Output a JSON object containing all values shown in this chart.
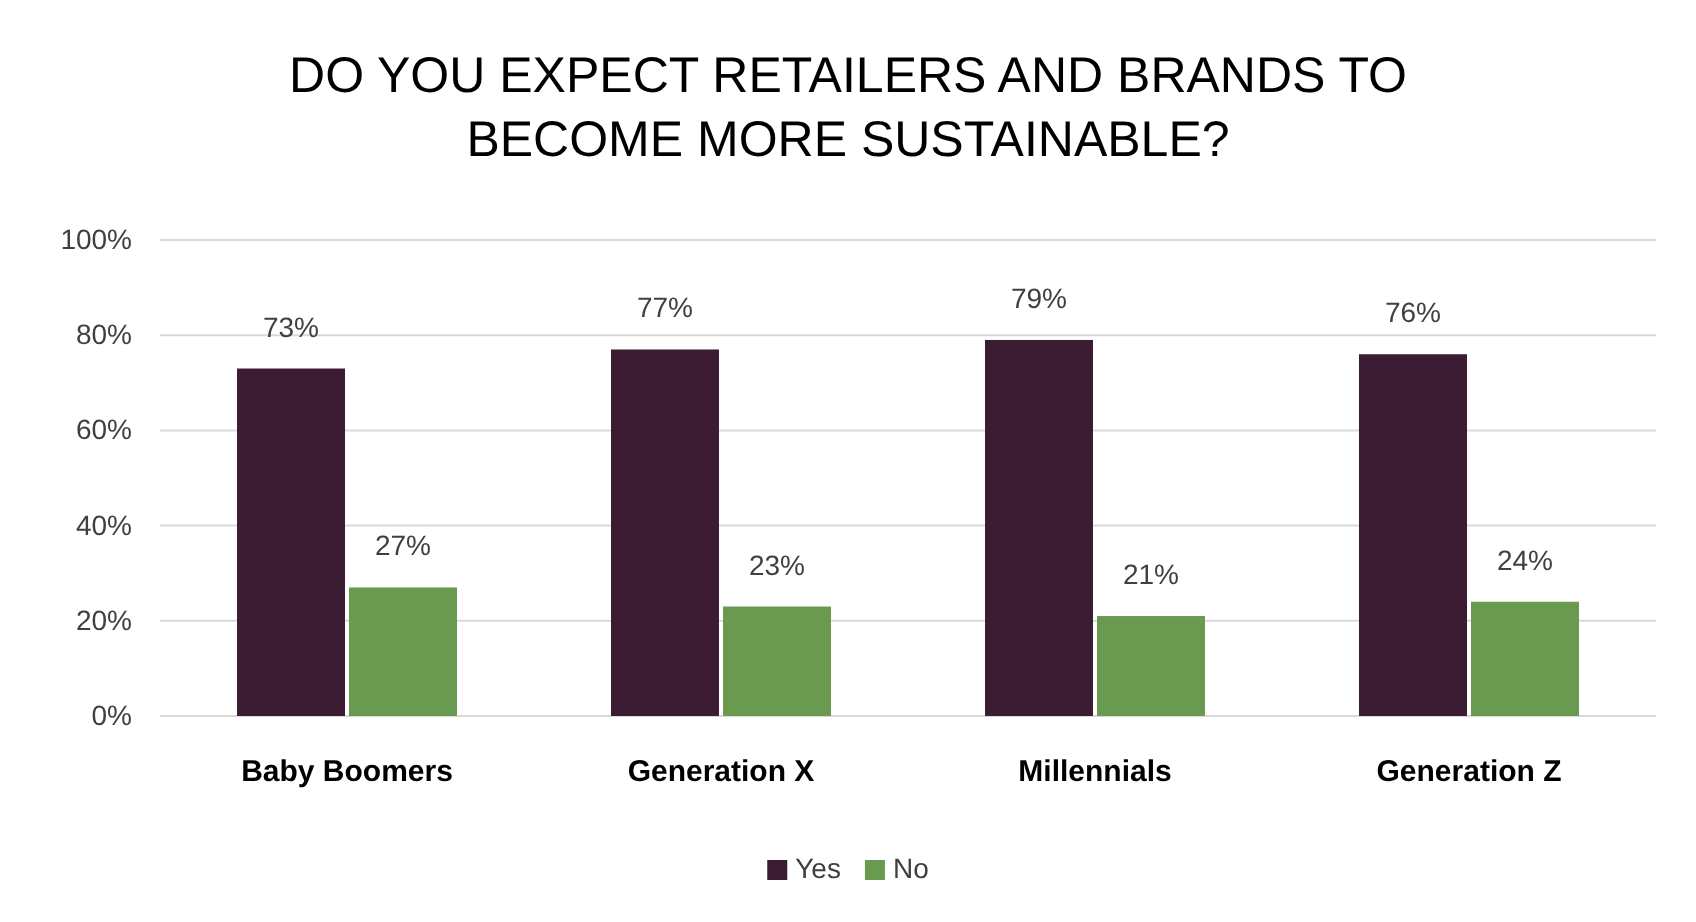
{
  "chart_data": {
    "type": "bar",
    "title": "DO YOU EXPECT RETAILERS AND BRANDS TO BECOME MORE SUSTAINABLE?",
    "categories": [
      "Baby Boomers",
      "Generation X",
      "Millennials",
      "Generation Z"
    ],
    "series": [
      {
        "name": "Yes",
        "color": "#3b1c32",
        "values": [
          73,
          77,
          79,
          76
        ],
        "value_labels": [
          "73%",
          "77%",
          "79%",
          "76%"
        ]
      },
      {
        "name": "No",
        "color": "#6a9a4f",
        "values": [
          27,
          23,
          21,
          24
        ],
        "value_labels": [
          "27%",
          "23%",
          "21%",
          "24%"
        ]
      }
    ],
    "ylim": [
      0,
      100
    ],
    "yticks": [
      {
        "value": 0,
        "label": "0%"
      },
      {
        "value": 20,
        "label": "20%"
      },
      {
        "value": 40,
        "label": "40%"
      },
      {
        "value": 60,
        "label": "60%"
      },
      {
        "value": 80,
        "label": "80%"
      },
      {
        "value": 100,
        "label": "100%"
      }
    ],
    "grid": "y",
    "legend": "bottom"
  }
}
